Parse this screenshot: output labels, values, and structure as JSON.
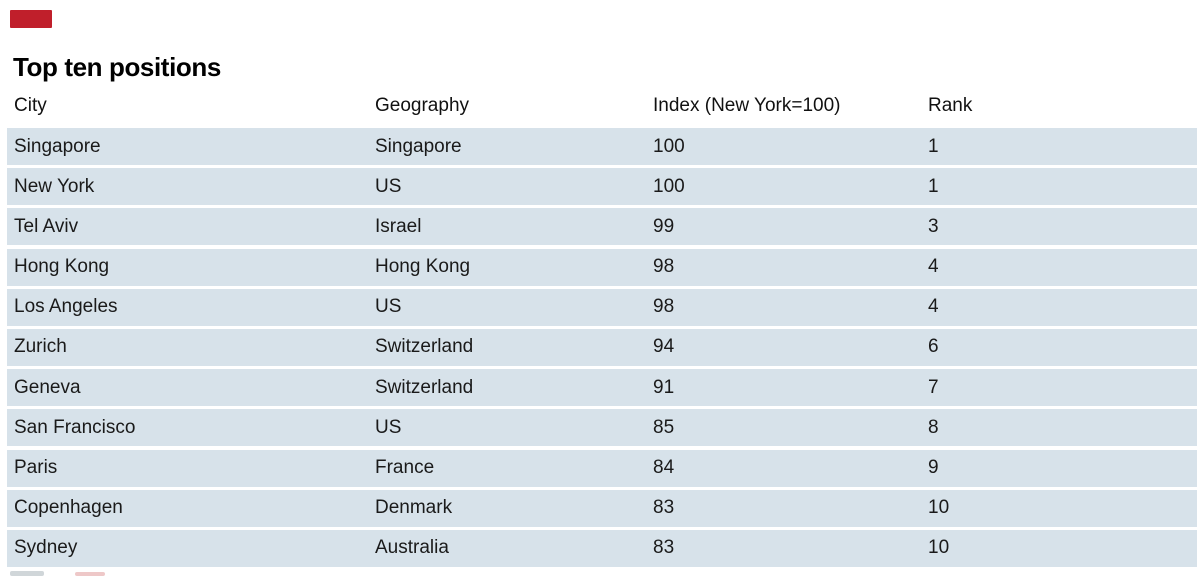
{
  "title": "Top ten positions",
  "colors": {
    "brand_red": "#c01f2b",
    "row_band": "#d7e2ea",
    "text": "#1a1a1a"
  },
  "table": {
    "columns": [
      "City",
      "Geography",
      "Index (New York=100)",
      "Rank"
    ],
    "rows": [
      {
        "city": "Singapore",
        "geography": "Singapore",
        "index": "100",
        "rank": "1"
      },
      {
        "city": "New York",
        "geography": "US",
        "index": "100",
        "rank": "1"
      },
      {
        "city": "Tel Aviv",
        "geography": "Israel",
        "index": "99",
        "rank": "3"
      },
      {
        "city": "Hong Kong",
        "geography": "Hong Kong",
        "index": "98",
        "rank": "4"
      },
      {
        "city": "Los Angeles",
        "geography": "US",
        "index": "98",
        "rank": "4"
      },
      {
        "city": "Zurich",
        "geography": "Switzerland",
        "index": "94",
        "rank": "6"
      },
      {
        "city": "Geneva",
        "geography": "Switzerland",
        "index": "91",
        "rank": "7"
      },
      {
        "city": "San Francisco",
        "geography": "US",
        "index": "85",
        "rank": "8"
      },
      {
        "city": "Paris",
        "geography": "France",
        "index": "84",
        "rank": "9"
      },
      {
        "city": "Copenhagen",
        "geography": "Denmark",
        "index": "83",
        "rank": "10"
      },
      {
        "city": "Sydney",
        "geography": "Australia",
        "index": "83",
        "rank": "10"
      }
    ]
  },
  "chart_data": {
    "type": "table",
    "title": "Top ten positions",
    "columns": [
      "City",
      "Geography",
      "Index (New York=100)",
      "Rank"
    ],
    "rows": [
      [
        "Singapore",
        "Singapore",
        100,
        1
      ],
      [
        "New York",
        "US",
        100,
        1
      ],
      [
        "Tel Aviv",
        "Israel",
        99,
        3
      ],
      [
        "Hong Kong",
        "Hong Kong",
        98,
        4
      ],
      [
        "Los Angeles",
        "US",
        98,
        4
      ],
      [
        "Zurich",
        "Switzerland",
        94,
        6
      ],
      [
        "Geneva",
        "Switzerland",
        91,
        7
      ],
      [
        "San Francisco",
        "US",
        85,
        8
      ],
      [
        "Paris",
        "France",
        84,
        9
      ],
      [
        "Copenhagen",
        "Denmark",
        83,
        10
      ],
      [
        "Sydney",
        "Australia",
        83,
        10
      ]
    ]
  }
}
